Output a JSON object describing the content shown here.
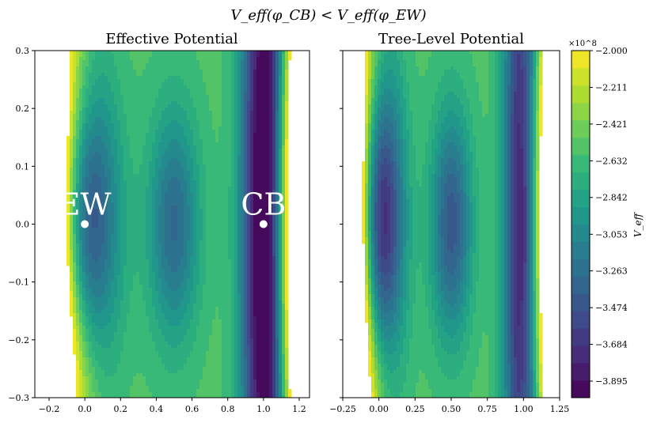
{
  "figure_title": "V_eff(φ_CB) < V_eff(φ_EW)",
  "chart_data": [
    {
      "type": "contour",
      "title": "Effective Potential",
      "xlim": [
        -0.25,
        1.25
      ],
      "ylim": [
        -0.3,
        0.3
      ],
      "xticks": [
        -0.2,
        0.0,
        0.2,
        0.4,
        0.6,
        0.8,
        1.0,
        1.2
      ],
      "xtick_labels": [
        "−0.2",
        "0.0",
        "0.2",
        "0.4",
        "0.6",
        "0.8",
        "1.0",
        "1.2"
      ],
      "yticks": [
        -0.3,
        -0.2,
        -0.1,
        0.0,
        0.1,
        0.2,
        0.3
      ],
      "ytick_labels": [
        "−0.3",
        "−0.2",
        "−0.1",
        "0.0",
        "0.1",
        "0.2",
        "0.3"
      ],
      "minima": [
        {
          "label": "EW",
          "x": 0.0,
          "y": 0.0
        },
        {
          "label": "CB",
          "x": 1.0,
          "y": 0.0
        }
      ],
      "wells": [
        {
          "x": 0.0,
          "depth": 0.72,
          "sx": 0.12,
          "sy": 0.17
        },
        {
          "x": 1.0,
          "depth": 0.82,
          "sx": 0.085,
          "sy": 0.55
        }
      ],
      "bump": {
        "x": 0.5,
        "height": 0.38,
        "sx": 0.1,
        "sy": 0.14
      }
    },
    {
      "type": "contour",
      "title": "Tree-Level Potential",
      "xlim": [
        -0.25,
        1.25
      ],
      "ylim": [
        -0.3,
        0.3
      ],
      "xticks": [
        -0.25,
        0.0,
        0.25,
        0.5,
        0.75,
        1.0,
        1.25
      ],
      "xtick_labels": [
        "−0.25",
        "0.00",
        "0.25",
        "0.50",
        "0.75",
        "1.00",
        "1.25"
      ],
      "yticks": [
        -0.3,
        -0.2,
        -0.1,
        0.0,
        0.1,
        0.2,
        0.3
      ],
      "ytick_labels": [],
      "minima": [],
      "wells": [
        {
          "x": 0.0,
          "depth": 0.9,
          "sx": 0.11,
          "sy": 0.18
        },
        {
          "x": 0.97,
          "depth": 0.6,
          "sx": 0.08,
          "sy": 0.55
        }
      ],
      "bump": {
        "x": 0.5,
        "height": 0.45,
        "sx": 0.1,
        "sy": 0.14
      }
    }
  ],
  "colorbar": {
    "label": "V_eff",
    "exponent_label": "×10^8",
    "min": -3.99,
    "max": -2.0,
    "tick_labels": [
      "−2.000",
      "−2.211",
      "−2.421",
      "−2.632",
      "−2.842",
      "−3.053",
      "−3.263",
      "−3.474",
      "−3.684",
      "−3.895"
    ],
    "levels": 20
  },
  "colors": {
    "viridis": [
      "#440154",
      "#482878",
      "#3e4989",
      "#31688e",
      "#26828e",
      "#1f9e89",
      "#35b779",
      "#6ece58",
      "#b5de2b",
      "#fde725"
    ],
    "marker": "#ffffff"
  }
}
